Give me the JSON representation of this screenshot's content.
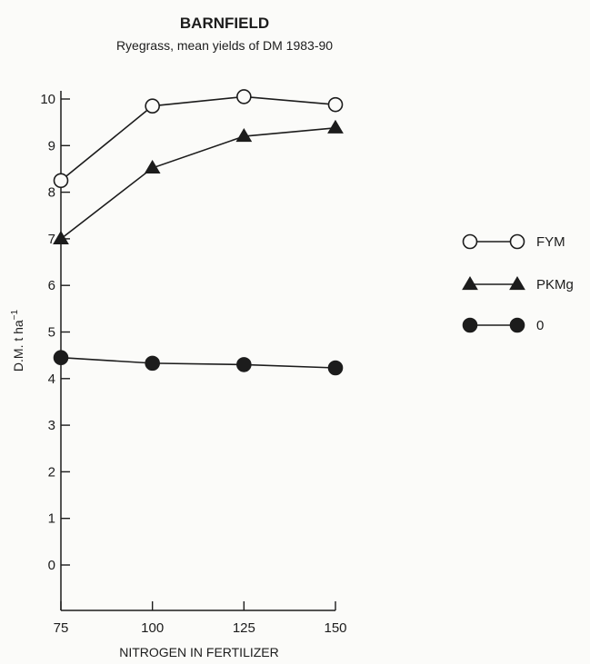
{
  "chart_data": {
    "type": "line",
    "title": "BARNFIELD",
    "subtitle": "Ryegrass, mean yields of DM 1983-90",
    "xlabel": "NITROGEN IN FERTILIZER",
    "ylabel_main": "D.M. t ha",
    "ylabel_sup": "−1",
    "x": [
      75,
      100,
      125,
      150
    ],
    "xticks": [
      "75",
      "100",
      "125",
      "150"
    ],
    "yticks": [
      "0",
      "1",
      "2",
      "3",
      "4",
      "5",
      "6",
      "7",
      "8",
      "9",
      "10"
    ],
    "xlim": [
      75,
      150
    ],
    "ylim": [
      0,
      10
    ],
    "grid": false,
    "legend_position": "right",
    "series": [
      {
        "name": "FYM",
        "marker": "open-circle",
        "values": [
          8.25,
          9.85,
          10.05,
          9.88
        ]
      },
      {
        "name": "PKMg",
        "marker": "filled-triangle",
        "values": [
          7.0,
          8.52,
          9.2,
          9.38
        ]
      },
      {
        "name": "0",
        "marker": "filled-circle",
        "values": [
          4.45,
          4.33,
          4.3,
          4.23
        ]
      }
    ],
    "colors": {
      "ink": "#1c1c1c",
      "paper": "#fbfbf9"
    }
  }
}
